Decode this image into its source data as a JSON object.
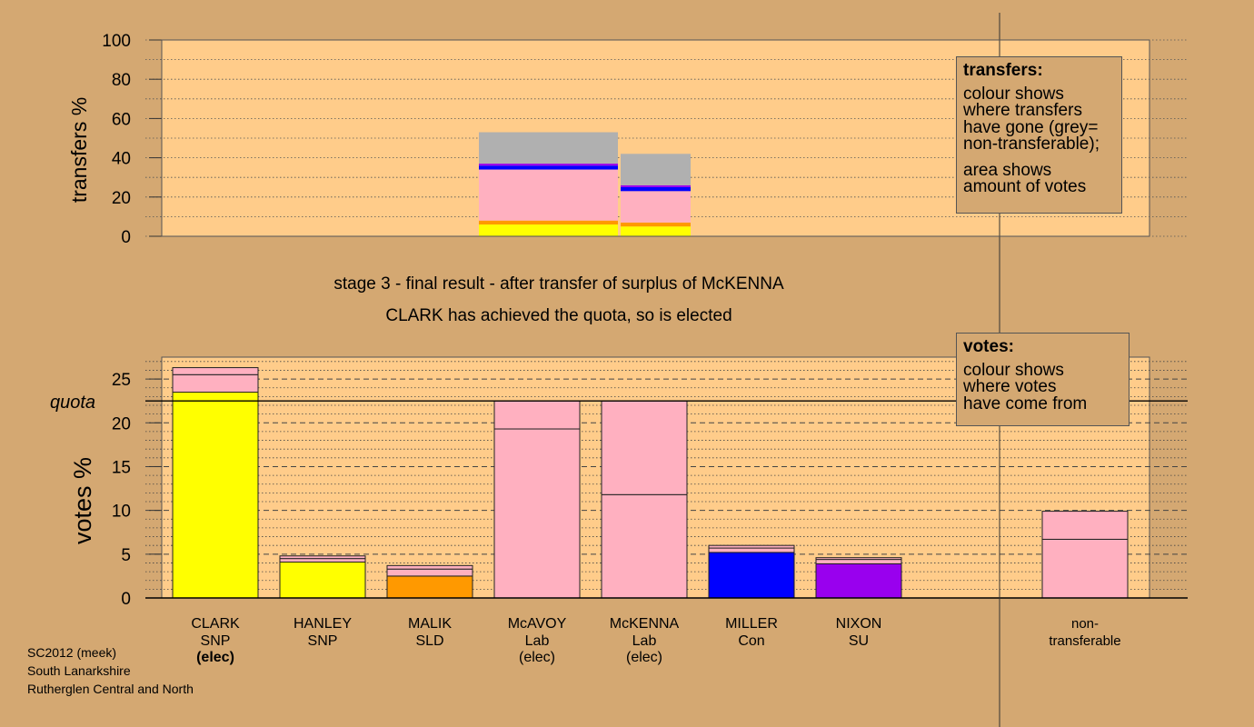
{
  "colors": {
    "background": "#d4a872",
    "plot_area": "#ffcc8a",
    "SNP": "#ffff00",
    "SLD": "#ff9900",
    "Lab": "#ffb0c0",
    "Con": "#0000ff",
    "SU": "#9900ee",
    "non_transferable": "#b0b0b0"
  },
  "captions": {
    "stage": "stage 3 - final result - after transfer of surplus of McKENNA",
    "result": "CLARK has achieved the quota, so is elected"
  },
  "footer": [
    "SC2012 (meek)",
    "South Lanarkshire",
    "Rutherglen Central and North"
  ],
  "transfers_legend": {
    "title": "transfers:",
    "lines": [
      "colour shows",
      "where transfers",
      "have gone (grey=",
      "non-transferable);",
      "area shows",
      "amount of votes"
    ]
  },
  "votes_legend": {
    "title": "votes:",
    "lines": [
      "colour shows",
      "where votes",
      "have come from"
    ]
  },
  "quota_label": "quota",
  "chart_data": [
    {
      "type": "bar",
      "ylabel": "transfers %",
      "ylim": [
        0,
        100
      ],
      "yticks": [
        0,
        20,
        40,
        60,
        80,
        100
      ],
      "grid": true,
      "legend_position": "top-right",
      "bars": [
        {
          "under": "McAVOY",
          "segments": [
            {
              "color": "SNP",
              "value": 6
            },
            {
              "color": "SLD",
              "value": 2
            },
            {
              "color": "Lab",
              "value": 26
            },
            {
              "color": "Con",
              "value": 2
            },
            {
              "color": "SU",
              "value": 1
            },
            {
              "color": "non_transferable",
              "value": 16
            }
          ]
        },
        {
          "under": "McKENNA",
          "segments": [
            {
              "color": "SNP",
              "value": 5
            },
            {
              "color": "SLD",
              "value": 2
            },
            {
              "color": "Lab",
              "value": 16
            },
            {
              "color": "Con",
              "value": 2
            },
            {
              "color": "SU",
              "value": 1
            },
            {
              "color": "non_transferable",
              "value": 16
            }
          ]
        }
      ]
    },
    {
      "type": "bar",
      "ylabel": "votes %",
      "ylim": [
        0,
        27.5
      ],
      "yticks": [
        0,
        5,
        10,
        15,
        20,
        25
      ],
      "grid": true,
      "legend_position": "top-right",
      "quota": 22.5,
      "categories": [
        {
          "name": "CLARK",
          "party": "SNP",
          "status": "(elec)",
          "status_bold": true
        },
        {
          "name": "HANLEY",
          "party": "SNP",
          "status": ""
        },
        {
          "name": "MALIK",
          "party": "SLD",
          "status": ""
        },
        {
          "name": "McAVOY",
          "party": "Lab",
          "status": "(elec)"
        },
        {
          "name": "McKENNA",
          "party": "Lab",
          "status": "(elec)"
        },
        {
          "name": "MILLER",
          "party": "Con",
          "status": ""
        },
        {
          "name": "NIXON",
          "party": "SU",
          "status": ""
        },
        {
          "name": "non-",
          "party": "transferable",
          "status": "",
          "separate": true
        }
      ],
      "series": [
        [
          {
            "color": "SNP",
            "value": 23.5
          },
          {
            "color": "Lab",
            "value": 2.0
          },
          {
            "color": "Lab",
            "value": 0.8
          }
        ],
        [
          {
            "color": "SNP",
            "value": 4.1
          },
          {
            "color": "Lab",
            "value": 0.4
          },
          {
            "color": "Lab",
            "value": 0.3
          }
        ],
        [
          {
            "color": "SLD",
            "value": 2.5
          },
          {
            "color": "Lab",
            "value": 0.8
          },
          {
            "color": "Lab",
            "value": 0.4
          }
        ],
        [
          {
            "color": "Lab",
            "value": 19.3
          },
          {
            "color": "Lab",
            "value": 3.2
          }
        ],
        [
          {
            "color": "Lab",
            "value": 11.8
          },
          {
            "color": "Lab",
            "value": 10.7
          }
        ],
        [
          {
            "color": "Con",
            "value": 5.2
          },
          {
            "color": "Lab",
            "value": 0.5
          },
          {
            "color": "Lab",
            "value": 0.3
          }
        ],
        [
          {
            "color": "SU",
            "value": 3.9
          },
          {
            "color": "Lab",
            "value": 0.5
          },
          {
            "color": "Lab",
            "value": 0.2
          }
        ],
        [
          {
            "color": "Lab",
            "value": 6.7
          },
          {
            "color": "Lab",
            "value": 3.2
          }
        ]
      ]
    }
  ]
}
